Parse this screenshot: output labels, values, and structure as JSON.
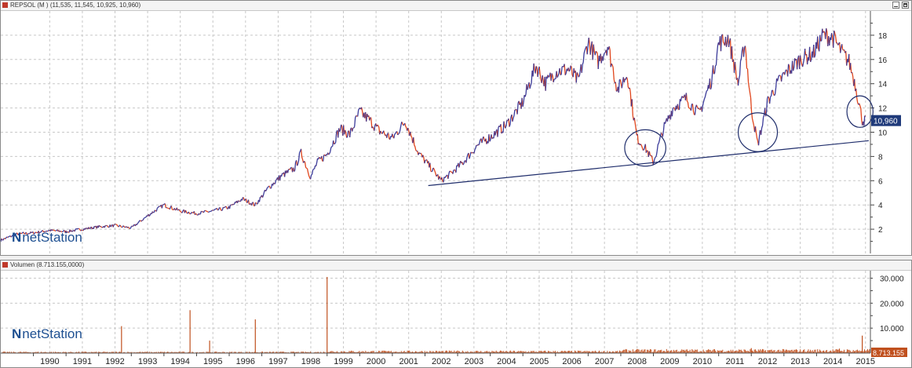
{
  "price_panel": {
    "title": "REPSOL (M ) (11,535, 11,545, 10,925, 10,960)",
    "last_label": "10,960",
    "watermark": "netStation"
  },
  "volume_panel": {
    "title": "Volumen (8.713.155,0000)",
    "last_label": "8.713.155",
    "watermark": "netStation"
  },
  "colors": {
    "up": "#3b3b9a",
    "down": "#e0451c",
    "trend": "#1f2d6b",
    "vol": "#c0501e"
  },
  "chart_data": [
    {
      "type": "line",
      "series": [
        {
          "x": [
            1989.0,
            1989.5,
            1990.0,
            1990.5,
            1991.0,
            1991.5,
            1992.0,
            1992.5,
            1993.0,
            1993.3,
            1993.6,
            1994.0,
            1994.5,
            1995.0,
            1995.5,
            1996.0,
            1996.4,
            1996.8,
            1997.2,
            1997.6,
            1998.0,
            1998.2,
            1998.5,
            1998.7,
            1999.0,
            1999.4,
            1999.7,
            2000.0,
            2000.3,
            2000.6,
            2001.0,
            2001.4,
            2001.8,
            2002.2,
            2002.5,
            2002.8,
            2003.2,
            2003.6,
            2004.0,
            2004.5,
            2005.0,
            2005.4,
            2005.7,
            2006.0,
            2006.4,
            2006.7,
            2007.0,
            2007.3,
            2007.6,
            2007.9,
            2008.2,
            2008.5,
            2008.8,
            2009.0,
            2009.3,
            2009.6,
            2010.0,
            2010.4,
            2010.8,
            2011.0,
            2011.3,
            2011.6,
            2011.8,
            2012.0,
            2012.2,
            2012.5,
            2012.8,
            2013.1,
            2013.5,
            2013.9,
            2014.2,
            2014.5,
            2014.8,
            2015.0,
            2015.2,
            2015.4,
            2015.5
          ],
          "y": [
            1.1,
            1.6,
            1.7,
            1.9,
            1.8,
            2.0,
            2.2,
            2.3,
            2.1,
            2.7,
            3.3,
            4.0,
            3.5,
            3.3,
            3.5,
            3.8,
            4.5,
            4.0,
            5.4,
            6.4,
            7.0,
            8.3,
            6.3,
            7.5,
            8.2,
            10.3,
            9.8,
            11.7,
            11.0,
            10.1,
            9.5,
            10.9,
            8.3,
            7.0,
            6.0,
            6.6,
            7.6,
            8.9,
            9.6,
            10.6,
            12.5,
            15.5,
            14.0,
            15.0,
            15.2,
            14.2,
            17.5,
            15.8,
            17.2,
            13.5,
            14.8,
            9.5,
            8.5,
            7.5,
            10.2,
            12.0,
            12.8,
            11.5,
            14.5,
            17.3,
            17.8,
            14.0,
            17.5,
            12.0,
            9.0,
            12.5,
            14.0,
            15.0,
            16.0,
            16.5,
            18.0,
            17.8,
            16.5,
            15.8,
            13.8,
            11.0,
            10.96
          ]
        }
      ],
      "ylim": [
        0,
        20
      ],
      "yticks": [
        2,
        4,
        6,
        8,
        10,
        12,
        14,
        16,
        18
      ],
      "xlim": [
        1989.0,
        2015.65
      ],
      "trendline": [
        [
          2002.1,
          5.6
        ],
        [
          2015.6,
          9.3
        ]
      ],
      "circles": [
        {
          "x": 2008.75,
          "y": 8.7,
          "rx": 0.63,
          "ry": 1.5
        },
        {
          "x": 2012.2,
          "y": 10.0,
          "rx": 0.6,
          "ry": 1.6
        },
        {
          "x": 2015.33,
          "y": 11.7,
          "rx": 0.4,
          "ry": 1.3
        }
      ]
    },
    {
      "type": "bar",
      "ylim": [
        0,
        33000
      ],
      "yticks": [
        10000,
        20000,
        30000
      ],
      "ytick_labels": [
        "10.000",
        "20.000",
        "30.000"
      ],
      "spikes": [
        [
          1992.7,
          10800
        ],
        [
          1994.8,
          17200
        ],
        [
          1995.4,
          5000
        ],
        [
          1996.8,
          13500
        ],
        [
          1999.0,
          30500
        ],
        [
          2012.0,
          2000
        ],
        [
          2014.7,
          1800
        ],
        [
          2015.4,
          7000
        ]
      ],
      "base_level": 600
    }
  ],
  "x_axis": {
    "labels": [
      "1990",
      "1991",
      "1992",
      "1993",
      "1994",
      "1995",
      "1996",
      "1997",
      "1998",
      "1999",
      "2000",
      "2001",
      "2002",
      "2003",
      "2004",
      "2005",
      "2006",
      "2007",
      "2008",
      "2009",
      "2010",
      "2011",
      "2012",
      "2013",
      "2014",
      "2015"
    ]
  }
}
